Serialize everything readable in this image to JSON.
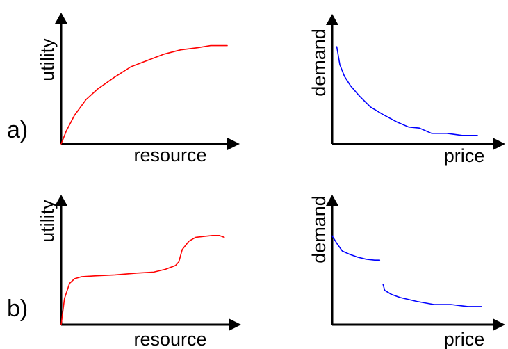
{
  "chart_data": [
    {
      "type": "line",
      "panel": "a)",
      "xlabel": "resource",
      "ylabel": "utility",
      "color": "#ff0000",
      "xlim": [
        0,
        100
      ],
      "ylim": [
        0,
        100
      ],
      "series": [
        {
          "x": [
            0,
            3,
            8,
            15,
            22,
            32,
            42,
            52,
            62,
            72,
            82,
            90,
            100
          ],
          "y": [
            0,
            12,
            27,
            42,
            52,
            63,
            73,
            79,
            85,
            89,
            91,
            93,
            93
          ]
        }
      ]
    },
    {
      "type": "line",
      "panel": "a)",
      "xlabel": "price",
      "ylabel": "demand",
      "color": "#0000ff",
      "xlim": [
        0,
        100
      ],
      "ylim": [
        0,
        100
      ],
      "series": [
        {
          "x": [
            3,
            5,
            8,
            12,
            18,
            25,
            33,
            42,
            50,
            57,
            65,
            75,
            85,
            95
          ],
          "y": [
            92,
            75,
            64,
            55,
            45,
            35,
            28,
            21,
            16,
            15,
            10,
            10,
            8,
            8
          ]
        }
      ]
    },
    {
      "type": "line",
      "panel": "b)",
      "xlabel": "resource",
      "ylabel": "utility",
      "color": "#ff0000",
      "xlim": [
        0,
        100
      ],
      "ylim": [
        0,
        100
      ],
      "series": [
        {
          "x": [
            0,
            2,
            5,
            8,
            12,
            20,
            32,
            45,
            55,
            62,
            68,
            70,
            72,
            76,
            80,
            85,
            90,
            94,
            97
          ],
          "y": [
            0,
            28,
            44,
            49,
            51,
            52,
            53,
            55,
            56,
            59,
            63,
            67,
            80,
            89,
            93,
            94,
            95,
            95,
            93
          ]
        }
      ]
    },
    {
      "type": "line",
      "panel": "b)",
      "xlabel": "price",
      "ylabel": "demand",
      "color": "#0000ff",
      "xlim": [
        0,
        100
      ],
      "ylim": [
        0,
        100
      ],
      "series": [
        {
          "x": [
            0,
            3,
            6,
            10,
            15,
            20,
            25,
            28
          ],
          "y": [
            88,
            80,
            73,
            70,
            67,
            65,
            64,
            64
          ]
        },
        {
          "x": [
            30,
            31,
            35,
            40,
            50,
            60,
            70,
            80,
            88
          ],
          "y": [
            40,
            34,
            30,
            27,
            23,
            20,
            20,
            18,
            18
          ]
        }
      ]
    }
  ],
  "panels": {
    "a": {
      "label": "a)"
    },
    "b": {
      "label": "b)"
    }
  }
}
